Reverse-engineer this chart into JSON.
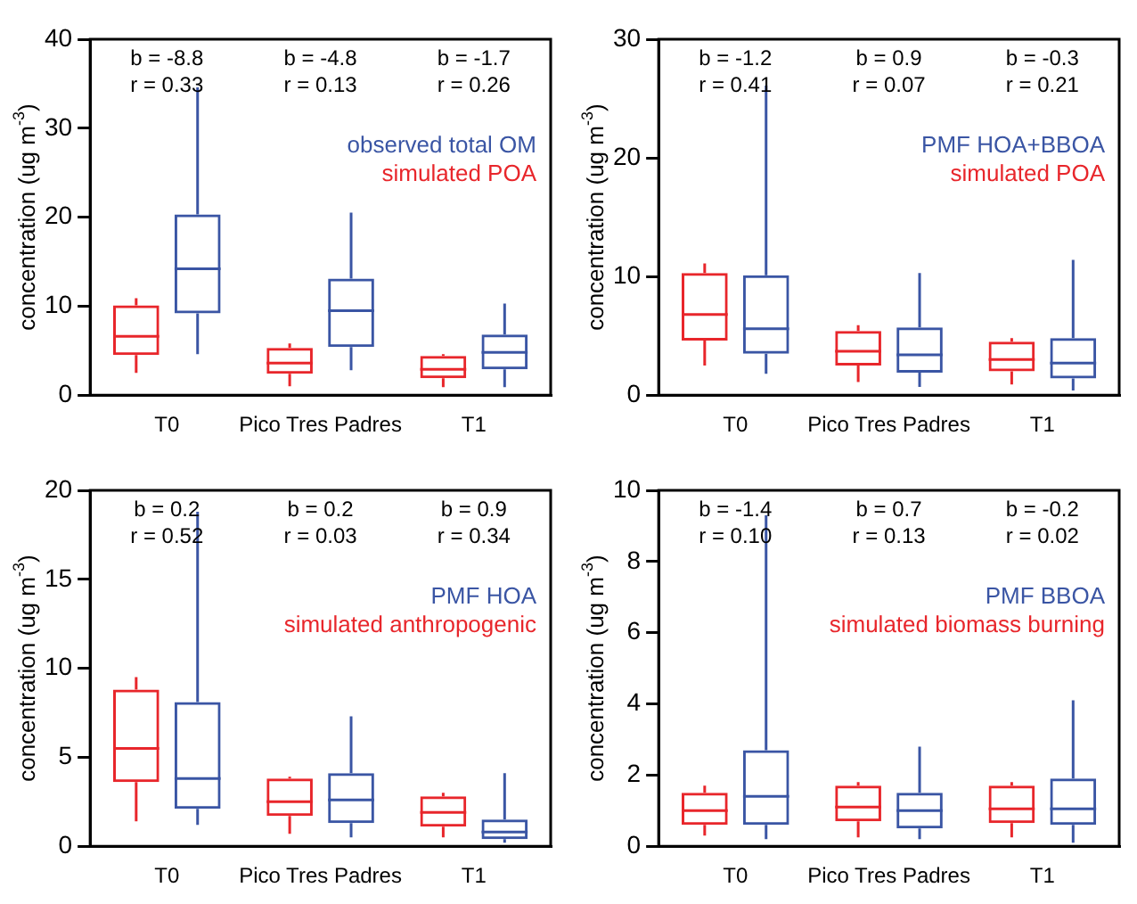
{
  "chart_data": [
    {
      "type": "box",
      "ylabel": "concentration (ug m$^{-3}$)",
      "categories": [
        "T0",
        "Pico Tres Padres",
        "T1"
      ],
      "ylim": [
        0,
        40
      ],
      "yticks": [
        0,
        10,
        20,
        30,
        40
      ],
      "legend": "top right",
      "series": [
        {
          "name": "simulated POA",
          "color": "#e8262b",
          "boxes": [
            {
              "low": 2.5,
              "q1": 4.5,
              "median": 6.6,
              "q3": 10.1,
              "high": 10.9
            },
            {
              "low": 1.0,
              "q1": 2.4,
              "median": 3.6,
              "q3": 5.3,
              "high": 5.8
            },
            {
              "low": 0.9,
              "q1": 1.9,
              "median": 2.9,
              "q3": 4.4,
              "high": 4.6
            }
          ]
        },
        {
          "name": "observed total OM",
          "color": "#3a55a4",
          "boxes": [
            {
              "low": 4.6,
              "q1": 9.2,
              "median": 14.2,
              "q3": 20.3,
              "high": 34.6
            },
            {
              "low": 2.8,
              "q1": 5.4,
              "median": 9.5,
              "q3": 13.1,
              "high": 20.5
            },
            {
              "low": 0.9,
              "q1": 2.9,
              "median": 4.8,
              "q3": 6.8,
              "high": 10.3
            }
          ]
        }
      ],
      "annotations": [
        "b = -8.8",
        "r = 0.33",
        "b = -4.8",
        "r = 0.13",
        "b = -1.7",
        "r = 0.26"
      ]
    },
    {
      "type": "box",
      "ylabel": "concentration (ug m$^{-3}$)",
      "categories": [
        "T0",
        "Pico Tres Padres",
        "T1"
      ],
      "ylim": [
        0,
        30
      ],
      "yticks": [
        0,
        10,
        20,
        30
      ],
      "legend": "top right",
      "series": [
        {
          "name": "simulated POA",
          "color": "#e8262b",
          "boxes": [
            {
              "low": 2.5,
              "q1": 4.6,
              "median": 6.8,
              "q3": 10.3,
              "high": 11.1
            },
            {
              "low": 1.1,
              "q1": 2.5,
              "median": 3.7,
              "q3": 5.4,
              "high": 5.9
            },
            {
              "low": 0.9,
              "q1": 2.0,
              "median": 3.0,
              "q3": 4.5,
              "high": 4.8
            }
          ]
        },
        {
          "name": "PMF HOA+BBOA",
          "color": "#3a55a4",
          "boxes": [
            {
              "low": 1.8,
              "q1": 3.5,
              "median": 5.6,
              "q3": 10.1,
              "high": 26.1
            },
            {
              "low": 0.7,
              "q1": 1.9,
              "median": 3.4,
              "q3": 5.7,
              "high": 10.3
            },
            {
              "low": 0.4,
              "q1": 1.4,
              "median": 2.7,
              "q3": 4.8,
              "high": 11.4
            }
          ]
        }
      ],
      "annotations": [
        "b = -1.2",
        "r = 0.41",
        "b = 0.9",
        "r = 0.07",
        "b = -0.3",
        "r = 0.21"
      ]
    },
    {
      "type": "box",
      "ylabel": "concentration (ug m$^{-3}$)",
      "categories": [
        "T0",
        "Pico Tres Padres",
        "T1"
      ],
      "ylim": [
        0,
        20
      ],
      "yticks": [
        0,
        5,
        10,
        15,
        20
      ],
      "legend": "top right",
      "series": [
        {
          "name": "simulated anthropogenic",
          "color": "#e8262b",
          "boxes": [
            {
              "low": 1.4,
              "q1": 3.6,
              "median": 5.5,
              "q3": 8.8,
              "high": 9.5
            },
            {
              "low": 0.7,
              "q1": 1.7,
              "median": 2.5,
              "q3": 3.8,
              "high": 3.9
            },
            {
              "low": 0.5,
              "q1": 1.1,
              "median": 1.9,
              "q3": 2.8,
              "high": 3.0
            }
          ]
        },
        {
          "name": "PMF HOA",
          "color": "#3a55a4",
          "boxes": [
            {
              "low": 1.2,
              "q1": 2.1,
              "median": 3.8,
              "q3": 8.1,
              "high": 18.8
            },
            {
              "low": 0.5,
              "q1": 1.3,
              "median": 2.6,
              "q3": 4.1,
              "high": 7.3
            },
            {
              "low": 0.2,
              "q1": 0.4,
              "median": 0.8,
              "q3": 1.5,
              "high": 4.1
            }
          ]
        }
      ],
      "annotations": [
        "b = 0.2",
        "r = 0.52",
        "b = 0.2",
        "r = 0.03",
        "b = 0.9",
        "r = 0.34"
      ]
    },
    {
      "type": "box",
      "ylabel": "concentration (ug m$^{-3}$)",
      "categories": [
        "T0",
        "Pico Tres Padres",
        "T1"
      ],
      "ylim": [
        0,
        10
      ],
      "yticks": [
        0,
        2,
        4,
        6,
        8,
        10
      ],
      "legend": "top right",
      "series": [
        {
          "name": "simulated biomass burning",
          "color": "#e8262b",
          "boxes": [
            {
              "low": 0.3,
              "q1": 0.6,
              "median": 1.0,
              "q3": 1.5,
              "high": 1.7
            },
            {
              "low": 0.25,
              "q1": 0.7,
              "median": 1.1,
              "q3": 1.7,
              "high": 1.8
            },
            {
              "low": 0.25,
              "q1": 0.65,
              "median": 1.05,
              "q3": 1.7,
              "high": 1.8
            }
          ]
        },
        {
          "name": "PMF BBOA",
          "color": "#3a55a4",
          "boxes": [
            {
              "low": 0.2,
              "q1": 0.6,
              "median": 1.4,
              "q3": 2.7,
              "high": 9.3
            },
            {
              "low": 0.2,
              "q1": 0.5,
              "median": 1.0,
              "q3": 1.5,
              "high": 2.8
            },
            {
              "low": 0.1,
              "q1": 0.6,
              "median": 1.05,
              "q3": 1.9,
              "high": 4.1
            }
          ]
        }
      ],
      "annotations": [
        "b = -1.4",
        "r = 0.10",
        "b = 0.7",
        "r = 0.13",
        "b = -0.2",
        "r = 0.02"
      ]
    }
  ]
}
